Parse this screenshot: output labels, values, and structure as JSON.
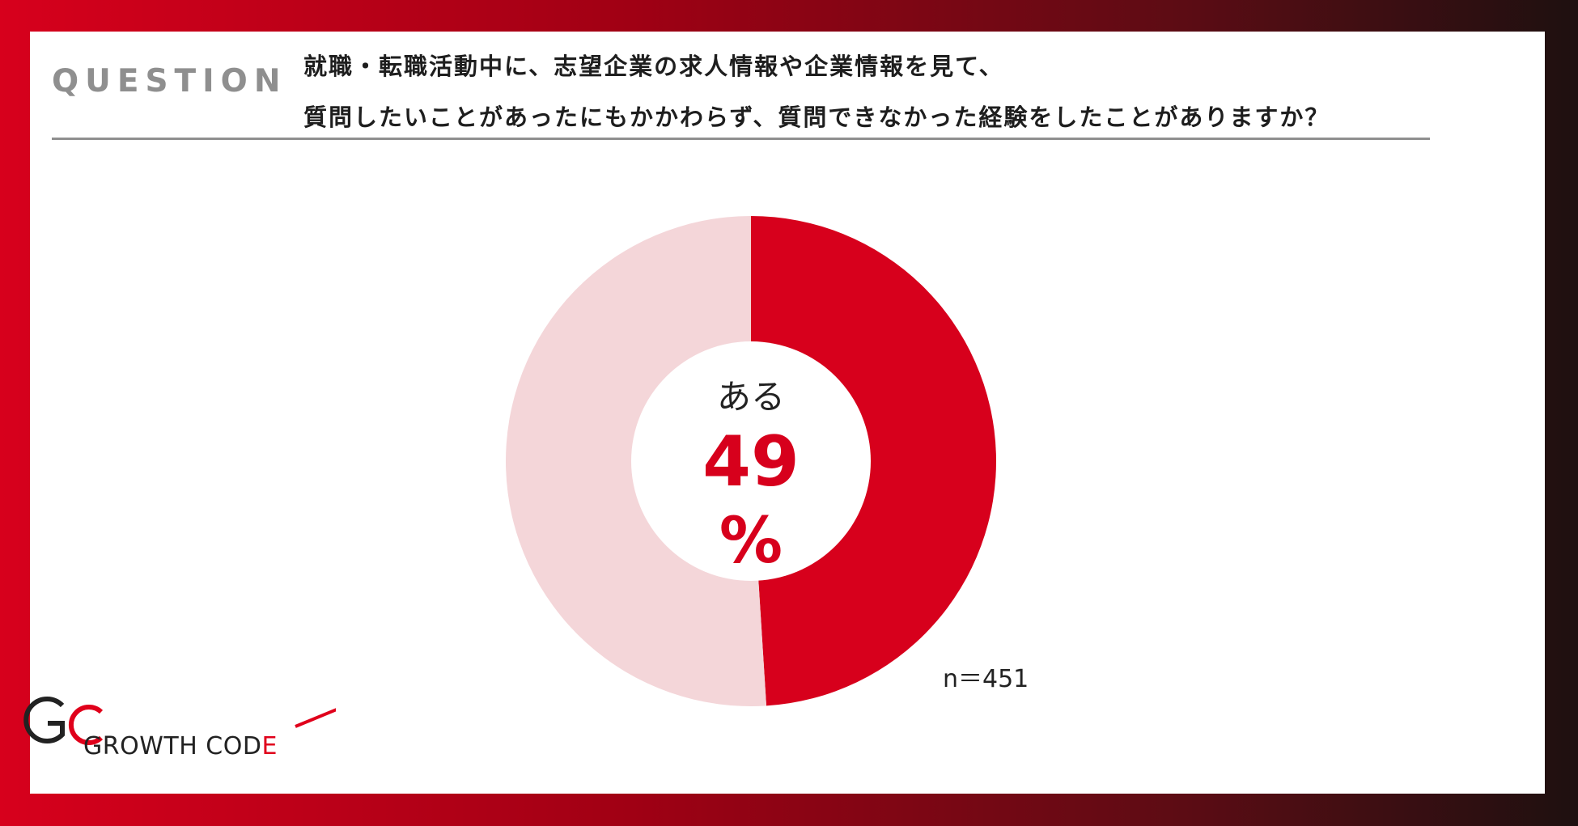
{
  "question": {
    "label": "QUESTION",
    "line1": "就職・転職活動中に、志望企業の求人情報や企業情報を見て、",
    "line2": "質問したいことがあったにもかかわらず、質問できなかった経験をしたことがありますか？"
  },
  "chart_data": {
    "type": "pie",
    "variant": "donut",
    "slices": [
      {
        "name": "ある",
        "value": 49,
        "color": "#d7001c"
      },
      {
        "value": 51,
        "color": "#f4d6d9"
      }
    ],
    "center_label": "ある",
    "center_value": "49",
    "center_unit": "%",
    "n_label": "n＝451"
  },
  "logo": {
    "text_main": "GROWTH COD",
    "text_accent": "E"
  },
  "colors": {
    "accent": "#d7001c",
    "rest": "#f4d6d9",
    "question_gray": "#8f8f8f"
  }
}
